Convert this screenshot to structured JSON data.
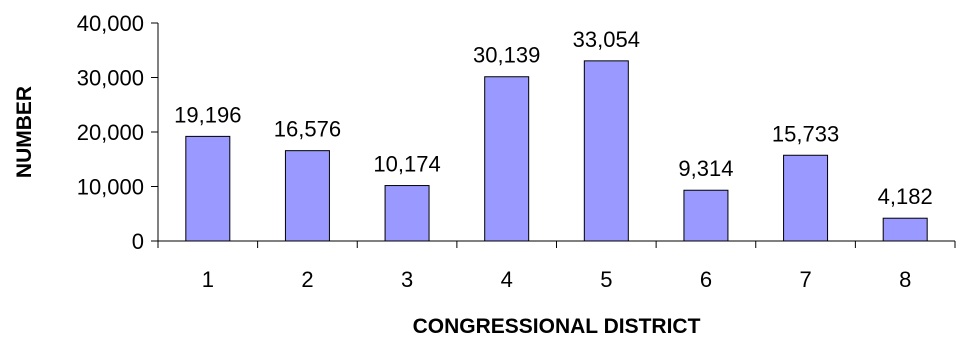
{
  "chart_data": {
    "type": "bar",
    "title": "",
    "xlabel": "CONGRESSIONAL DISTRICT",
    "ylabel": "NUMBER",
    "categories": [
      "1",
      "2",
      "3",
      "4",
      "5",
      "6",
      "7",
      "8"
    ],
    "values": [
      19196,
      16576,
      10174,
      30139,
      33054,
      9314,
      15733,
      4182
    ],
    "value_labels": [
      "19,196",
      "16,576",
      "10,174",
      "30,139",
      "33,054",
      "9,314",
      "15,733",
      "4,182"
    ],
    "ylim": [
      0,
      40000
    ],
    "yticks": [
      0,
      10000,
      20000,
      30000,
      40000
    ],
    "ytick_labels": [
      "0",
      "10,000",
      "20,000",
      "30,000",
      "40,000"
    ],
    "grid": false,
    "legend": "none",
    "bar_color": "#9999ff"
  }
}
